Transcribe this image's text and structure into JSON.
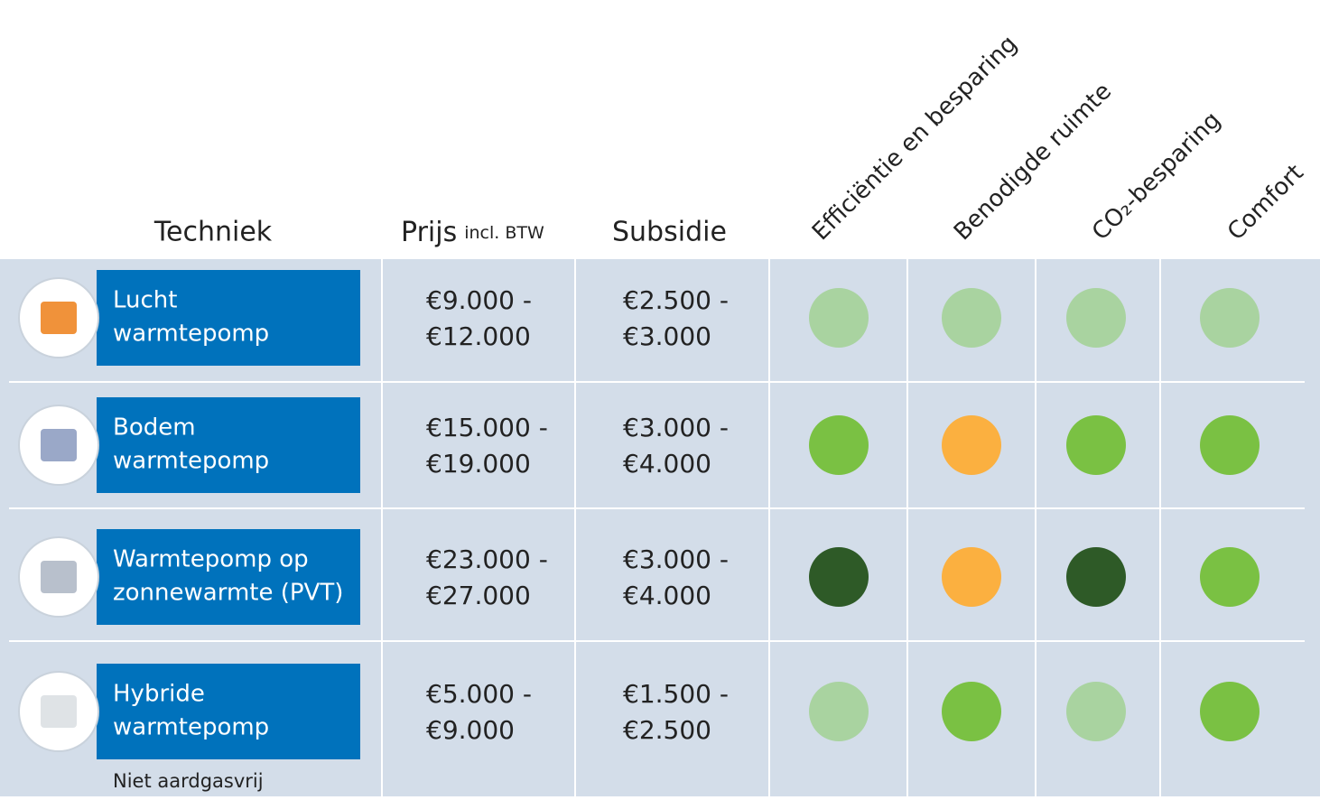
{
  "header": {
    "technique": "Techniek",
    "price": "Prijs",
    "price_note": "incl. BTW",
    "subsidy": "Subsidie",
    "criteria": [
      "Efficiëntie en besparing",
      "Benodigde ruimte",
      "CO₂-besparing",
      "Comfort"
    ]
  },
  "rows": [
    {
      "name": [
        "Lucht",
        "warmtepomp"
      ],
      "price": [
        "€9.000 -",
        "€12.000"
      ],
      "subsidy": [
        "€2.500 -",
        "€3.000"
      ],
      "ratings": [
        "#a9d3a0",
        "#a9d3a0",
        "#a9d3a0",
        "#a9d3a0"
      ],
      "icon": "#f0923a"
    },
    {
      "name": [
        "Bodem",
        "warmtepomp"
      ],
      "price": [
        "€15.000 -",
        "€19.000"
      ],
      "subsidy": [
        "€3.000 -",
        "€4.000"
      ],
      "ratings": [
        "#7ac143",
        "#fbb040",
        "#7ac143",
        "#7ac143"
      ],
      "icon": "#9aa8c8"
    },
    {
      "name": [
        "Warmtepomp op",
        "zonnewarmte (PVT)"
      ],
      "price": [
        "€23.000 -",
        "€27.000"
      ],
      "subsidy": [
        "€3.000 -",
        "€4.000"
      ],
      "ratings": [
        "#2e5a27",
        "#fbb040",
        "#2e5a27",
        "#7ac143"
      ],
      "icon": "#b8c0cc"
    },
    {
      "name": [
        "Hybride",
        "warmtepomp"
      ],
      "price": [
        "€5.000 -",
        "€9.000"
      ],
      "subsidy": [
        "€1.500 -",
        "€2.500"
      ],
      "ratings": [
        "#a9d3a0",
        "#7ac143",
        "#a9d3a0",
        "#7ac143"
      ],
      "icon": "#dfe3e6",
      "note": "Niet aardgasvrij"
    }
  ]
}
